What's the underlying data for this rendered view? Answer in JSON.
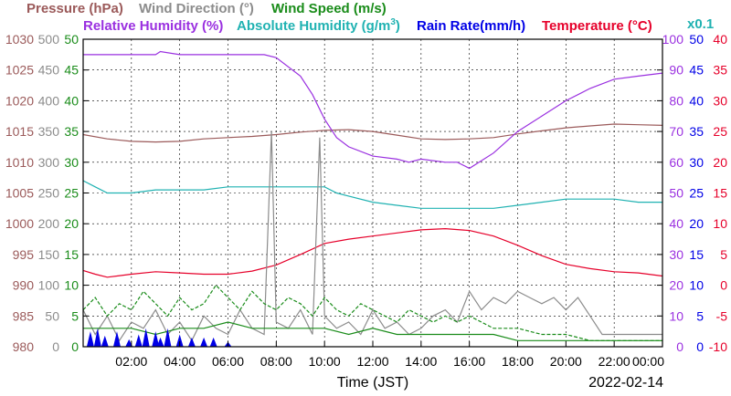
{
  "chart_data": {
    "type": "line",
    "date": "2022-02-14",
    "xlabel": "Time (JST)",
    "x_ticks": [
      "02:00",
      "04:00",
      "06:00",
      "08:00",
      "10:00",
      "12:00",
      "14:00",
      "16:00",
      "18:00",
      "20:00",
      "22:00",
      "00:00"
    ],
    "grid": true,
    "legend": {
      "pressure": "Pressure (hPa)",
      "wind_direction": "Wind Direction (°)",
      "wind_speed": "Wind Speed (m/s)",
      "relative_humidity": "Relative Humidity (%)",
      "absolute_humidity_prefix": "Absolute Humidity (g/m",
      "absolute_humidity_sup": "3",
      "absolute_humidity_suffix": ")",
      "rain_rate": "Rain Rate(mm/h)",
      "temperature": "Temperature (°C)",
      "abs_scale_note": "x0.1"
    },
    "axes": {
      "pressure": {
        "min": 980,
        "max": 1030,
        "ticks": [
          "980",
          "985",
          "990",
          "995",
          "1000",
          "1005",
          "1010",
          "1015",
          "1020",
          "1025",
          "1030"
        ]
      },
      "wind_direction": {
        "min": 0,
        "max": 500,
        "ticks": [
          "0",
          "50",
          "100",
          "150",
          "200",
          "250",
          "300",
          "350",
          "400",
          "450",
          "500"
        ]
      },
      "wind_speed": {
        "min": 0,
        "max": 50,
        "ticks": [
          "0",
          "5",
          "10",
          "15",
          "20",
          "25",
          "30",
          "35",
          "40",
          "45",
          "50"
        ]
      },
      "relative_humidity": {
        "min": 0,
        "max": 100,
        "ticks": [
          "0",
          "10",
          "20",
          "30",
          "40",
          "50",
          "60",
          "70",
          "80",
          "90",
          "100"
        ]
      },
      "rain_rate": {
        "min": 0,
        "max": 50,
        "ticks": [
          "0",
          "5",
          "10",
          "15",
          "20",
          "25",
          "30",
          "35",
          "40",
          "45",
          "50"
        ]
      },
      "temperature": {
        "min": -10,
        "max": 40,
        "ticks": [
          "-10",
          "-5",
          "0",
          "5",
          "10",
          "15",
          "20",
          "25",
          "30",
          "35",
          "40"
        ]
      }
    },
    "colors": {
      "pressure": "#9b5a5a",
      "wind_direction": "#8c8c8c",
      "wind_speed": "#1a8c1a",
      "relative_humidity": "#9a30e0",
      "absolute_humidity": "#20b2b2",
      "rain_rate": "#0000e6",
      "temperature": "#e6002a"
    },
    "series": [
      {
        "name": "Pressure (hPa)",
        "axis": "pressure",
        "x": [
          0,
          1,
          2,
          3,
          4,
          5,
          6,
          7,
          8,
          9,
          10,
          11,
          12,
          13,
          14,
          15,
          16,
          17,
          18,
          19,
          20,
          21,
          22,
          23,
          24
        ],
        "y": [
          1014.5,
          1013.8,
          1013.4,
          1013.3,
          1013.4,
          1013.8,
          1014.0,
          1014.2,
          1014.5,
          1014.9,
          1015.2,
          1015.3,
          1015.0,
          1014.4,
          1013.8,
          1013.7,
          1013.8,
          1014.0,
          1014.6,
          1015.1,
          1015.6,
          1015.9,
          1016.2,
          1016.1,
          1016.0
        ]
      },
      {
        "name": "Relative Humidity (%)",
        "axis": "relative_humidity",
        "x": [
          0,
          2,
          3,
          3.2,
          4,
          6,
          7.5,
          8,
          9,
          9.5,
          10,
          10.5,
          11,
          12,
          13,
          13.5,
          14,
          15,
          15.5,
          16,
          17,
          18,
          19,
          20,
          21,
          22,
          23,
          24
        ],
        "y": [
          95,
          95,
          95,
          96,
          95,
          95,
          95,
          94,
          88,
          82,
          74,
          68,
          65,
          62,
          61,
          60,
          61,
          60,
          60,
          58,
          63,
          70,
          75,
          80,
          84,
          87,
          88,
          89
        ]
      },
      {
        "name": "Absolute Humidity (g/m3) x0.1",
        "axis": "relative_humidity",
        "x": [
          0,
          0.5,
          1,
          2,
          3,
          4,
          5,
          6,
          7,
          8,
          9,
          10,
          10.5,
          11,
          12,
          13,
          14,
          15,
          16,
          17,
          18,
          19,
          20,
          21,
          22,
          23,
          24
        ],
        "y": [
          54,
          52,
          50,
          50,
          51,
          51,
          51,
          52,
          52,
          52,
          52,
          52,
          50,
          49,
          47,
          46,
          45,
          45,
          45,
          45,
          46,
          47,
          48,
          48,
          48,
          47,
          47
        ]
      },
      {
        "name": "Temperature (°C)",
        "axis": "temperature",
        "x": [
          0,
          0.5,
          1,
          2,
          3,
          4,
          5,
          6,
          7,
          8,
          9,
          10,
          11,
          12,
          13,
          14,
          15,
          16,
          17,
          18,
          19,
          20,
          21,
          22,
          23,
          24
        ],
        "y": [
          2.4,
          1.8,
          1.3,
          1.8,
          2.2,
          2.0,
          1.8,
          1.8,
          2.3,
          3.3,
          5.0,
          6.8,
          7.5,
          8.0,
          8.5,
          9.0,
          9.2,
          8.9,
          8.0,
          6.5,
          4.8,
          3.4,
          2.7,
          2.2,
          2.0,
          1.5
        ]
      },
      {
        "name": "Wind Direction (°)",
        "axis": "wind_direction",
        "x": [
          0,
          0.5,
          1,
          1.5,
          2,
          2.5,
          3,
          3.5,
          4,
          4.5,
          5,
          5.5,
          6,
          6.5,
          7,
          7.5,
          7.8,
          8,
          8.5,
          9,
          9.5,
          9.8,
          10,
          10.5,
          11,
          11.5,
          12,
          12.5,
          13,
          13.5,
          14,
          14.5,
          15,
          15.5,
          16,
          16.5,
          17,
          17.5,
          18,
          18.5,
          19,
          19.5,
          20,
          20.5,
          21,
          21.5,
          22,
          23,
          24
        ],
        "y": [
          60,
          20,
          50,
          10,
          40,
          30,
          60,
          20,
          40,
          10,
          50,
          30,
          20,
          60,
          30,
          20,
          350,
          40,
          30,
          60,
          20,
          340,
          50,
          30,
          40,
          20,
          60,
          30,
          40,
          20,
          30,
          50,
          60,
          40,
          90,
          60,
          80,
          70,
          90,
          80,
          70,
          80,
          60,
          80,
          50,
          20,
          20,
          20,
          20
        ]
      },
      {
        "name": "Wind Speed (m/s)",
        "axis": "wind_speed",
        "x": [
          0,
          1,
          2,
          3,
          4,
          5,
          6,
          7,
          8,
          9,
          10,
          11,
          12,
          13,
          14,
          15,
          16,
          17,
          18,
          19,
          20,
          21,
          22,
          23,
          24
        ],
        "y": [
          3,
          3,
          3,
          2,
          3,
          3,
          4,
          3,
          3,
          3,
          3,
          2,
          3,
          2,
          2,
          2,
          2,
          2,
          1,
          1,
          1,
          1,
          1,
          1,
          1
        ]
      },
      {
        "name": "Wind Speed gust (m/s)",
        "axis": "wind_speed",
        "x": [
          0,
          0.5,
          1,
          1.5,
          2,
          2.5,
          3,
          3.5,
          4,
          4.5,
          5,
          5.5,
          6,
          6.5,
          7,
          7.5,
          8,
          8.5,
          9,
          9.5,
          10,
          10.5,
          11,
          11.5,
          12,
          12.5,
          13,
          13.5,
          14,
          14.5,
          15,
          15.5,
          16,
          16.5,
          17,
          17.5,
          18,
          19,
          20,
          21,
          22,
          23,
          24
        ],
        "y": [
          6,
          8,
          5,
          7,
          6,
          9,
          7,
          5,
          8,
          6,
          7,
          10,
          8,
          6,
          9,
          7,
          6,
          8,
          7,
          5,
          8,
          6,
          5,
          7,
          6,
          5,
          4,
          6,
          5,
          4,
          5,
          4,
          5,
          4,
          3,
          3,
          3,
          2,
          2,
          1,
          1,
          1,
          1
        ]
      },
      {
        "name": "Rain Rate(mm/h)",
        "axis": "rain_rate",
        "x": [
          0.3,
          0.6,
          0.9,
          1.4,
          1.9,
          2.3,
          2.6,
          3.0,
          3.2,
          3.5,
          4.0,
          4.5,
          5.0,
          5.4,
          6.0
        ],
        "y": [
          2.5,
          3.0,
          1.8,
          2.5,
          1.2,
          2.0,
          3.0,
          2.5,
          1.5,
          3.0,
          2.0,
          1.5,
          1.5,
          1.5,
          0.8
        ]
      }
    ]
  }
}
